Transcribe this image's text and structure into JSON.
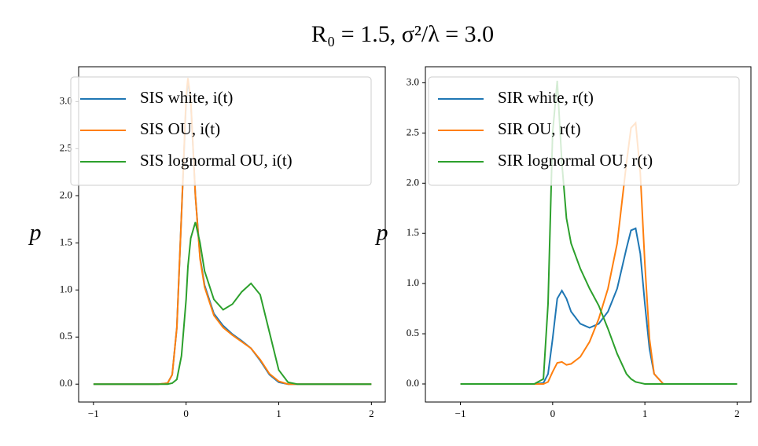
{
  "title": "R₀ = 1.5, σ²/λ = 3.0",
  "chart_data": [
    {
      "type": "line",
      "ylabel": "p",
      "legend": "upper left",
      "x": [
        -1,
        -0.5,
        -0.3,
        -0.2,
        -0.15,
        -0.1,
        -0.05,
        0,
        0.02,
        0.05,
        0.1,
        0.15,
        0.2,
        0.3,
        0.4,
        0.5,
        0.6,
        0.7,
        0.8,
        0.9,
        1.0,
        1.1,
        1.2,
        1.5,
        2.0
      ],
      "series": [
        {
          "name": "SIS white, i(t)",
          "color": "#1f77b4",
          "values": [
            0,
            0,
            0,
            0.01,
            0.1,
            0.6,
            1.8,
            3.0,
            3.22,
            3.0,
            2.0,
            1.35,
            1.05,
            0.75,
            0.62,
            0.53,
            0.46,
            0.38,
            0.25,
            0.1,
            0.02,
            0,
            0,
            0,
            0
          ]
        },
        {
          "name": "SIS OU, i(t)",
          "color": "#ff7f0e",
          "values": [
            0,
            0,
            0,
            0.01,
            0.1,
            0.6,
            1.8,
            3.05,
            3.25,
            3.02,
            2.0,
            1.33,
            1.03,
            0.73,
            0.6,
            0.52,
            0.45,
            0.38,
            0.26,
            0.11,
            0.03,
            0,
            0,
            0,
            0
          ]
        },
        {
          "name": "SIS lognormal OU, i(t)",
          "color": "#2ca02c",
          "values": [
            0,
            0,
            0,
            0,
            0.01,
            0.05,
            0.3,
            0.9,
            1.25,
            1.55,
            1.72,
            1.5,
            1.2,
            0.9,
            0.79,
            0.85,
            0.98,
            1.07,
            0.95,
            0.55,
            0.15,
            0.02,
            0,
            0,
            0
          ]
        }
      ],
      "xlim": [
        -1.16,
        2.15
      ],
      "ylim": [
        -0.19,
        3.37
      ],
      "xticks": [
        {
          "value": -1,
          "label": "−1"
        },
        0,
        1,
        2
      ],
      "yticks": [
        {
          "value": 0,
          "label": "0.0"
        },
        0.5,
        {
          "value": 1,
          "label": "1.0"
        },
        1.5,
        {
          "value": 2,
          "label": "2.0"
        },
        2.5,
        {
          "value": 3,
          "label": "3.0"
        }
      ]
    },
    {
      "type": "line",
      "ylabel": "p",
      "legend": "upper left",
      "x": [
        -1,
        -0.5,
        -0.2,
        -0.1,
        -0.05,
        0,
        0.05,
        0.1,
        0.15,
        0.2,
        0.3,
        0.4,
        0.5,
        0.6,
        0.7,
        0.8,
        0.85,
        0.9,
        0.95,
        1.0,
        1.05,
        1.1,
        1.2,
        1.5,
        2.0
      ],
      "series": [
        {
          "name": "SIR white, r(t)",
          "color": "#1f77b4",
          "values": [
            0,
            0,
            0,
            0.01,
            0.1,
            0.45,
            0.85,
            0.93,
            0.85,
            0.72,
            0.6,
            0.56,
            0.6,
            0.72,
            0.95,
            1.35,
            1.53,
            1.55,
            1.3,
            0.8,
            0.35,
            0.1,
            0,
            0,
            0
          ]
        },
        {
          "name": "SIR OU, r(t)",
          "color": "#ff7f0e",
          "values": [
            0,
            0,
            0,
            0,
            0.02,
            0.12,
            0.21,
            0.22,
            0.19,
            0.2,
            0.27,
            0.42,
            0.65,
            0.95,
            1.4,
            2.2,
            2.55,
            2.6,
            2.1,
            1.2,
            0.45,
            0.1,
            0,
            0,
            0
          ]
        },
        {
          "name": "SIR lognormal OU, r(t)",
          "color": "#2ca02c",
          "values": [
            0,
            0,
            0,
            0.05,
            0.8,
            2.5,
            3.02,
            2.2,
            1.65,
            1.4,
            1.15,
            0.95,
            0.78,
            0.55,
            0.3,
            0.1,
            0.05,
            0.02,
            0.01,
            0,
            0,
            0,
            0,
            0,
            0
          ]
        }
      ],
      "xlim": [
        -1.38,
        2.15
      ],
      "ylim": [
        -0.18,
        3.16
      ],
      "xticks": [
        {
          "value": -1,
          "label": "−1"
        },
        0,
        1,
        2
      ],
      "yticks": [
        {
          "value": 0,
          "label": "0.0"
        },
        0.5,
        {
          "value": 1,
          "label": "1.0"
        },
        1.5,
        {
          "value": 2,
          "label": "2.0"
        },
        2.5,
        {
          "value": 3,
          "label": "3.0"
        }
      ]
    }
  ]
}
